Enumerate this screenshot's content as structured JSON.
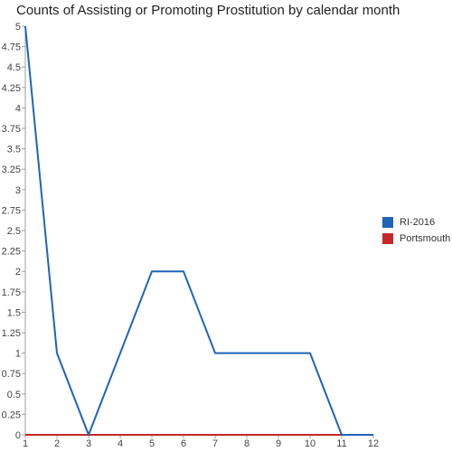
{
  "chart_data": {
    "type": "line",
    "title": "Counts of Assisting or Promoting Prostitution by calendar month",
    "xlabel": "",
    "ylabel": "",
    "x": [
      1,
      2,
      3,
      4,
      5,
      6,
      7,
      8,
      9,
      10,
      11,
      12
    ],
    "xlim": [
      1,
      12
    ],
    "ylim": [
      0,
      5
    ],
    "y_ticks": [
      "0",
      "0.25",
      "0.5",
      "0.75",
      "1",
      "1.25",
      "1.5",
      "1.75",
      "2",
      "2.25",
      "2.5",
      "2.75",
      "3",
      "3.25",
      "3.5",
      "3.75",
      "4",
      "4.25",
      "4.5",
      "4.75",
      "5"
    ],
    "x_ticks": [
      "1",
      "2",
      "3",
      "4",
      "5",
      "6",
      "7",
      "8",
      "9",
      "10",
      "11",
      "12"
    ],
    "grid": false,
    "legend_position": "right",
    "series": [
      {
        "name": "RI-2016",
        "color": "#1f64b8",
        "values": [
          5,
          1,
          0,
          1,
          2,
          2,
          1,
          1,
          1,
          1,
          0,
          0
        ]
      },
      {
        "name": "Portsmouth",
        "color": "#c62828",
        "values": [
          0,
          0,
          0,
          0,
          0,
          0,
          0,
          0,
          0,
          0,
          0,
          0
        ]
      }
    ]
  }
}
